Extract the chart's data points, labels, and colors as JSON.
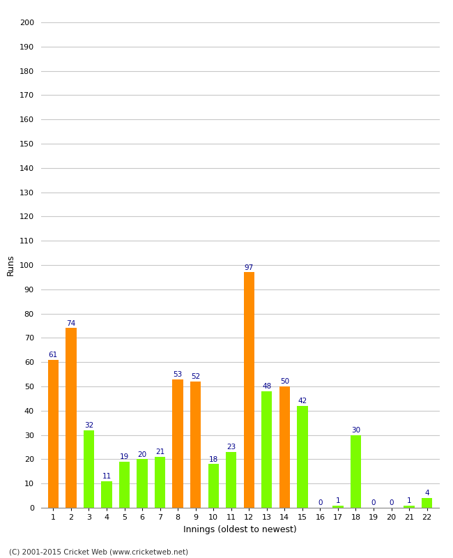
{
  "innings": [
    1,
    2,
    3,
    4,
    5,
    6,
    7,
    8,
    9,
    10,
    11,
    12,
    13,
    14,
    15,
    16,
    17,
    18,
    19,
    20,
    21,
    22
  ],
  "values": [
    61,
    74,
    32,
    11,
    19,
    20,
    21,
    53,
    52,
    18,
    23,
    97,
    48,
    50,
    42,
    0,
    1,
    30,
    0,
    0,
    1,
    4
  ],
  "colors": [
    "#FF8C00",
    "#FF8C00",
    "#7CFC00",
    "#7CFC00",
    "#7CFC00",
    "#7CFC00",
    "#7CFC00",
    "#FF8C00",
    "#FF8C00",
    "#7CFC00",
    "#7CFC00",
    "#FF8C00",
    "#7CFC00",
    "#FF8C00",
    "#7CFC00",
    "#FF8C00",
    "#7CFC00",
    "#7CFC00",
    "#FF8C00",
    "#FF8C00",
    "#7CFC00",
    "#7CFC00"
  ],
  "xlabel": "Innings (oldest to newest)",
  "ylabel": "Runs",
  "ylim": [
    0,
    200
  ],
  "yticks": [
    0,
    10,
    20,
    30,
    40,
    50,
    60,
    70,
    80,
    90,
    100,
    110,
    120,
    130,
    140,
    150,
    160,
    170,
    180,
    190,
    200
  ],
  "label_color": "#00008B",
  "background_color": "#FFFFFF",
  "grid_color": "#C8C8C8",
  "footer": "(C) 2001-2015 Cricket Web (www.cricketweb.net)"
}
